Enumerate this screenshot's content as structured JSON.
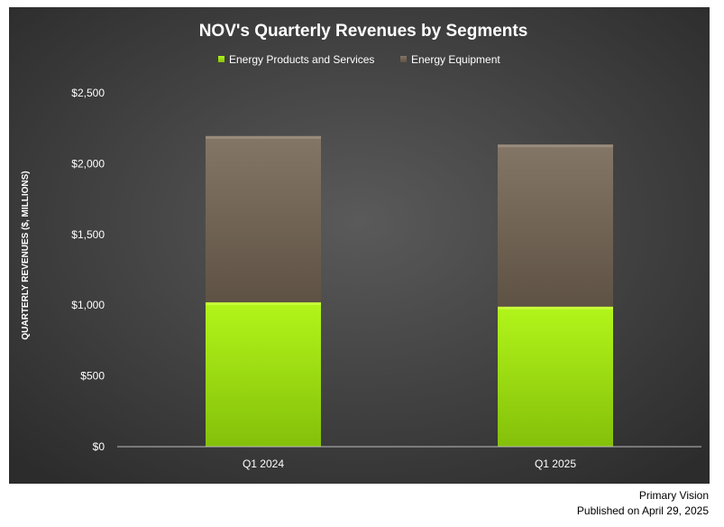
{
  "chart_data": {
    "type": "bar",
    "stacked": true,
    "title": "NOV's Quarterly Revenues by Segments",
    "ylabel": "QUARTERLY REVENUES ($, MILLIONS)",
    "xlabel": "",
    "categories": [
      "Q1 2024",
      "Q1 2025"
    ],
    "series": [
      {
        "name": "Energy Products and Services",
        "values": [
          1020,
          990
        ],
        "color": "#9edc0a"
      },
      {
        "name": "Energy Equipment",
        "values": [
          1175,
          1145
        ],
        "color": "#7a6c5c"
      }
    ],
    "ylim": [
      0,
      2500
    ],
    "yticks": [
      0,
      500,
      1000,
      1500,
      2000,
      2500
    ],
    "ytick_labels": [
      "$0",
      "$500",
      "$1,000",
      "$1,500",
      "$2,000",
      "$2,500"
    ],
    "legend_position": "top",
    "grid": false,
    "background": "#3c3c3c"
  },
  "credits": {
    "source": "Primary Vision",
    "published": "Published on April 29, 2025"
  }
}
